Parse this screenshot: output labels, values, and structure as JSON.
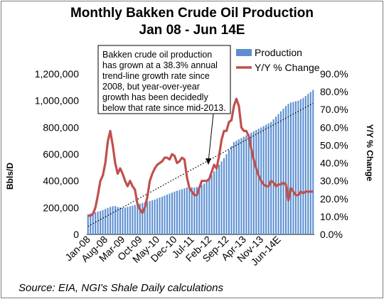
{
  "chart_data": {
    "type": "bar",
    "title": "Monthly Bakken Crude Oil Production",
    "subtitle": "Jan 08 - Jun 14E",
    "ylabel": "Bbls/D",
    "y2label": "Y/Y % Change",
    "ylim": [
      0,
      1200000
    ],
    "y2lim": [
      0,
      90
    ],
    "yticks": [
      "0",
      "200,000",
      "400,000",
      "600,000",
      "800,000",
      "1,000,000",
      "1,200,000"
    ],
    "y2ticks": [
      "0.0%",
      "10.0%",
      "20.0%",
      "30.0%",
      "40.0%",
      "50.0%",
      "60.0%",
      "70.0%",
      "80.0%",
      "90.0%"
    ],
    "xticks": [
      "Jan-08",
      "Aug-08",
      "Mar-09",
      "Oct-09",
      "May-10",
      "Dec-10",
      "Jul-11",
      "Feb-12",
      "Sep-12",
      "Apr-13",
      "Nov-13",
      "Jun-14E"
    ],
    "legend": {
      "placement": "top-right",
      "production": "Production",
      "yoy": "Y/Y % Change"
    },
    "annotation": [
      "Bakken crude oil production",
      "has grown at a 38.3% annual",
      "trend-line growth rate since",
      "2008, but year-over-year",
      "growth has been decidedly",
      "below that rate since mid-2013."
    ],
    "source": "Source: EIA, NGI's Shale Daily calculations",
    "series": [
      {
        "name": "Production",
        "kind": "bar",
        "axis": "left",
        "color": "#5b8fd1",
        "values": [
          150000,
          155000,
          160000,
          165000,
          170000,
          175000,
          182000,
          190000,
          198000,
          205000,
          210000,
          212000,
          205000,
          200000,
          198000,
          200000,
          205000,
          210000,
          215000,
          220000,
          225000,
          230000,
          235000,
          240000,
          245000,
          250000,
          255000,
          260000,
          268000,
          275000,
          282000,
          290000,
          298000,
          305000,
          312000,
          320000,
          326000,
          332000,
          338000,
          344000,
          350000,
          355000,
          352000,
          350000,
          355000,
          360000,
          370000,
          380000,
          400000,
          420000,
          445000,
          470000,
          495000,
          520000,
          545000,
          570000,
          600000,
          630000,
          660000,
          690000,
          700000,
          710000,
          720000,
          730000,
          740000,
          750000,
          760000,
          770000,
          780000,
          790000,
          800000,
          810000,
          820000,
          830000,
          840000,
          860000,
          880000,
          900000,
          920000,
          940000,
          960000,
          975000,
          985000,
          990000,
          995000,
          1000000,
          1010000,
          1020000,
          1035000,
          1050000,
          1065000,
          1080000
        ]
      },
      {
        "name": "Y/Y % Change",
        "kind": "line",
        "axis": "right",
        "color": "#c0504d",
        "values": [
          10.5,
          10.5,
          11.5,
          15.0,
          22.0,
          30.0,
          33.0,
          40.0,
          52.0,
          58.0,
          50.0,
          40.0,
          34.0,
          37.0,
          34.0,
          30.0,
          27.0,
          30.0,
          27.0,
          25.0,
          17.0,
          14.0,
          12.0,
          15.0,
          21.0,
          30.0,
          34.0,
          37.0,
          39.0,
          40.0,
          41.0,
          43.0,
          43.0,
          42.0,
          45.0,
          44.0,
          40.0,
          41.0,
          43.0,
          42.0,
          32.0,
          26.0,
          24.0,
          22.0,
          22.0,
          26.0,
          30.0,
          30.0,
          30.0,
          31.0,
          35.0,
          39.0,
          37.0,
          44.0,
          53.0,
          58.0,
          58.0,
          63.0,
          64.0,
          72.0,
          76.0,
          72.0,
          60.0,
          58.0,
          58.0,
          55.0,
          48.0,
          42.0,
          37.0,
          33.0,
          30.0,
          28.0,
          27.0,
          27.0,
          30.0,
          29.0,
          27.0,
          28.0,
          28.0,
          29.0,
          28.0,
          19.0,
          26.0,
          24.0,
          22.0,
          22.0,
          24.0,
          23.0,
          24.0,
          24.0,
          24.0,
          24.0
        ]
      },
      {
        "name": "Trend",
        "kind": "line",
        "axis": "right",
        "style": "dotted",
        "color": "#000000",
        "start": 4.5,
        "end": 73.5
      }
    ]
  }
}
